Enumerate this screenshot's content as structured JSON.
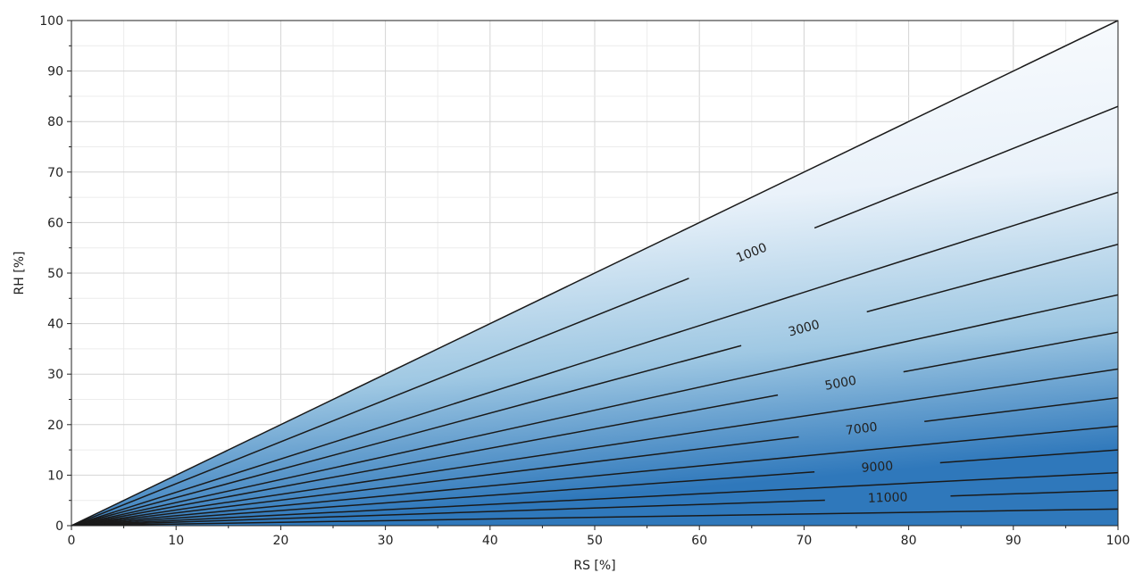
{
  "chart_data": {
    "type": "line",
    "title": "",
    "xlabel": "RS [%]",
    "ylabel": "RH [%]",
    "xlim": [
      0,
      100
    ],
    "ylim": [
      0,
      100
    ],
    "x_ticks": [
      0,
      10,
      20,
      30,
      40,
      50,
      60,
      70,
      80,
      90,
      100
    ],
    "y_ticks": [
      0,
      10,
      20,
      30,
      40,
      50,
      60,
      70,
      80,
      90,
      100
    ],
    "grid": true,
    "minor_grid": true,
    "background_gradient": {
      "from_color": "#ffffff",
      "to_color": "#2f78bb",
      "direction": "increasing toward RH=0, RS=100"
    },
    "line_color": "#1a1a1a",
    "series": [
      {
        "values": [
          [
            0,
            0
          ],
          [
            100,
            100
          ]
        ]
      },
      {
        "values": [
          [
            0,
            0
          ],
          [
            100,
            83
          ]
        ]
      },
      {
        "values": [
          [
            0,
            0
          ],
          [
            100,
            66
          ]
        ]
      },
      {
        "values": [
          [
            0,
            0
          ],
          [
            100,
            55.7
          ]
        ]
      },
      {
        "values": [
          [
            0,
            0
          ],
          [
            100,
            45.7
          ]
        ]
      },
      {
        "values": [
          [
            0,
            0
          ],
          [
            100,
            38.3
          ]
        ]
      },
      {
        "values": [
          [
            0,
            0
          ],
          [
            100,
            31
          ]
        ]
      },
      {
        "values": [
          [
            0,
            0
          ],
          [
            100,
            25.3
          ]
        ]
      },
      {
        "values": [
          [
            0,
            0
          ],
          [
            100,
            19.7
          ]
        ]
      },
      {
        "values": [
          [
            0,
            0
          ],
          [
            100,
            15
          ]
        ]
      },
      {
        "values": [
          [
            0,
            0
          ],
          [
            100,
            10.5
          ]
        ]
      },
      {
        "values": [
          [
            0,
            0
          ],
          [
            100,
            7
          ]
        ]
      },
      {
        "values": [
          [
            0,
            0
          ],
          [
            100,
            3.3
          ]
        ]
      }
    ],
    "contour_labels": [
      {
        "text": "1000",
        "series_index": 1,
        "x": 65
      },
      {
        "text": "3000",
        "series_index": 3,
        "x": 70
      },
      {
        "text": "5000",
        "series_index": 5,
        "x": 73.5
      },
      {
        "text": "7000",
        "series_index": 7,
        "x": 75.5
      },
      {
        "text": "9000",
        "series_index": 9,
        "x": 77
      },
      {
        "text": "11000",
        "series_index": 11,
        "x": 78
      }
    ]
  }
}
